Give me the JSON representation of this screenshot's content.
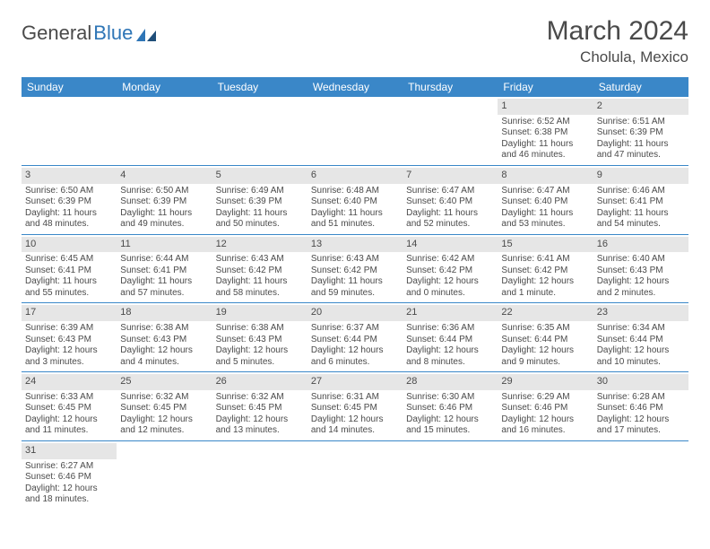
{
  "logo": {
    "text_a": "General",
    "text_b": "Blue"
  },
  "title": "March 2024",
  "location": "Cholula, Mexico",
  "colors": {
    "header_bar": "#3a87c8",
    "daynum_bg": "#e6e6e6",
    "text": "#4a4a4a",
    "border": "#3a87c8"
  },
  "weekdays": [
    "Sunday",
    "Monday",
    "Tuesday",
    "Wednesday",
    "Thursday",
    "Friday",
    "Saturday"
  ],
  "weeks": [
    [
      {
        "day": "",
        "lines": []
      },
      {
        "day": "",
        "lines": []
      },
      {
        "day": "",
        "lines": []
      },
      {
        "day": "",
        "lines": []
      },
      {
        "day": "",
        "lines": []
      },
      {
        "day": "1",
        "lines": [
          "Sunrise: 6:52 AM",
          "Sunset: 6:38 PM",
          "Daylight: 11 hours",
          "and 46 minutes."
        ]
      },
      {
        "day": "2",
        "lines": [
          "Sunrise: 6:51 AM",
          "Sunset: 6:39 PM",
          "Daylight: 11 hours",
          "and 47 minutes."
        ]
      }
    ],
    [
      {
        "day": "3",
        "lines": [
          "Sunrise: 6:50 AM",
          "Sunset: 6:39 PM",
          "Daylight: 11 hours",
          "and 48 minutes."
        ]
      },
      {
        "day": "4",
        "lines": [
          "Sunrise: 6:50 AM",
          "Sunset: 6:39 PM",
          "Daylight: 11 hours",
          "and 49 minutes."
        ]
      },
      {
        "day": "5",
        "lines": [
          "Sunrise: 6:49 AM",
          "Sunset: 6:39 PM",
          "Daylight: 11 hours",
          "and 50 minutes."
        ]
      },
      {
        "day": "6",
        "lines": [
          "Sunrise: 6:48 AM",
          "Sunset: 6:40 PM",
          "Daylight: 11 hours",
          "and 51 minutes."
        ]
      },
      {
        "day": "7",
        "lines": [
          "Sunrise: 6:47 AM",
          "Sunset: 6:40 PM",
          "Daylight: 11 hours",
          "and 52 minutes."
        ]
      },
      {
        "day": "8",
        "lines": [
          "Sunrise: 6:47 AM",
          "Sunset: 6:40 PM",
          "Daylight: 11 hours",
          "and 53 minutes."
        ]
      },
      {
        "day": "9",
        "lines": [
          "Sunrise: 6:46 AM",
          "Sunset: 6:41 PM",
          "Daylight: 11 hours",
          "and 54 minutes."
        ]
      }
    ],
    [
      {
        "day": "10",
        "lines": [
          "Sunrise: 6:45 AM",
          "Sunset: 6:41 PM",
          "Daylight: 11 hours",
          "and 55 minutes."
        ]
      },
      {
        "day": "11",
        "lines": [
          "Sunrise: 6:44 AM",
          "Sunset: 6:41 PM",
          "Daylight: 11 hours",
          "and 57 minutes."
        ]
      },
      {
        "day": "12",
        "lines": [
          "Sunrise: 6:43 AM",
          "Sunset: 6:42 PM",
          "Daylight: 11 hours",
          "and 58 minutes."
        ]
      },
      {
        "day": "13",
        "lines": [
          "Sunrise: 6:43 AM",
          "Sunset: 6:42 PM",
          "Daylight: 11 hours",
          "and 59 minutes."
        ]
      },
      {
        "day": "14",
        "lines": [
          "Sunrise: 6:42 AM",
          "Sunset: 6:42 PM",
          "Daylight: 12 hours",
          "and 0 minutes."
        ]
      },
      {
        "day": "15",
        "lines": [
          "Sunrise: 6:41 AM",
          "Sunset: 6:42 PM",
          "Daylight: 12 hours",
          "and 1 minute."
        ]
      },
      {
        "day": "16",
        "lines": [
          "Sunrise: 6:40 AM",
          "Sunset: 6:43 PM",
          "Daylight: 12 hours",
          "and 2 minutes."
        ]
      }
    ],
    [
      {
        "day": "17",
        "lines": [
          "Sunrise: 6:39 AM",
          "Sunset: 6:43 PM",
          "Daylight: 12 hours",
          "and 3 minutes."
        ]
      },
      {
        "day": "18",
        "lines": [
          "Sunrise: 6:38 AM",
          "Sunset: 6:43 PM",
          "Daylight: 12 hours",
          "and 4 minutes."
        ]
      },
      {
        "day": "19",
        "lines": [
          "Sunrise: 6:38 AM",
          "Sunset: 6:43 PM",
          "Daylight: 12 hours",
          "and 5 minutes."
        ]
      },
      {
        "day": "20",
        "lines": [
          "Sunrise: 6:37 AM",
          "Sunset: 6:44 PM",
          "Daylight: 12 hours",
          "and 6 minutes."
        ]
      },
      {
        "day": "21",
        "lines": [
          "Sunrise: 6:36 AM",
          "Sunset: 6:44 PM",
          "Daylight: 12 hours",
          "and 8 minutes."
        ]
      },
      {
        "day": "22",
        "lines": [
          "Sunrise: 6:35 AM",
          "Sunset: 6:44 PM",
          "Daylight: 12 hours",
          "and 9 minutes."
        ]
      },
      {
        "day": "23",
        "lines": [
          "Sunrise: 6:34 AM",
          "Sunset: 6:44 PM",
          "Daylight: 12 hours",
          "and 10 minutes."
        ]
      }
    ],
    [
      {
        "day": "24",
        "lines": [
          "Sunrise: 6:33 AM",
          "Sunset: 6:45 PM",
          "Daylight: 12 hours",
          "and 11 minutes."
        ]
      },
      {
        "day": "25",
        "lines": [
          "Sunrise: 6:32 AM",
          "Sunset: 6:45 PM",
          "Daylight: 12 hours",
          "and 12 minutes."
        ]
      },
      {
        "day": "26",
        "lines": [
          "Sunrise: 6:32 AM",
          "Sunset: 6:45 PM",
          "Daylight: 12 hours",
          "and 13 minutes."
        ]
      },
      {
        "day": "27",
        "lines": [
          "Sunrise: 6:31 AM",
          "Sunset: 6:45 PM",
          "Daylight: 12 hours",
          "and 14 minutes."
        ]
      },
      {
        "day": "28",
        "lines": [
          "Sunrise: 6:30 AM",
          "Sunset: 6:46 PM",
          "Daylight: 12 hours",
          "and 15 minutes."
        ]
      },
      {
        "day": "29",
        "lines": [
          "Sunrise: 6:29 AM",
          "Sunset: 6:46 PM",
          "Daylight: 12 hours",
          "and 16 minutes."
        ]
      },
      {
        "day": "30",
        "lines": [
          "Sunrise: 6:28 AM",
          "Sunset: 6:46 PM",
          "Daylight: 12 hours",
          "and 17 minutes."
        ]
      }
    ],
    [
      {
        "day": "31",
        "lines": [
          "Sunrise: 6:27 AM",
          "Sunset: 6:46 PM",
          "Daylight: 12 hours",
          "and 18 minutes."
        ]
      },
      {
        "day": "",
        "lines": []
      },
      {
        "day": "",
        "lines": []
      },
      {
        "day": "",
        "lines": []
      },
      {
        "day": "",
        "lines": []
      },
      {
        "day": "",
        "lines": []
      },
      {
        "day": "",
        "lines": []
      }
    ]
  ]
}
